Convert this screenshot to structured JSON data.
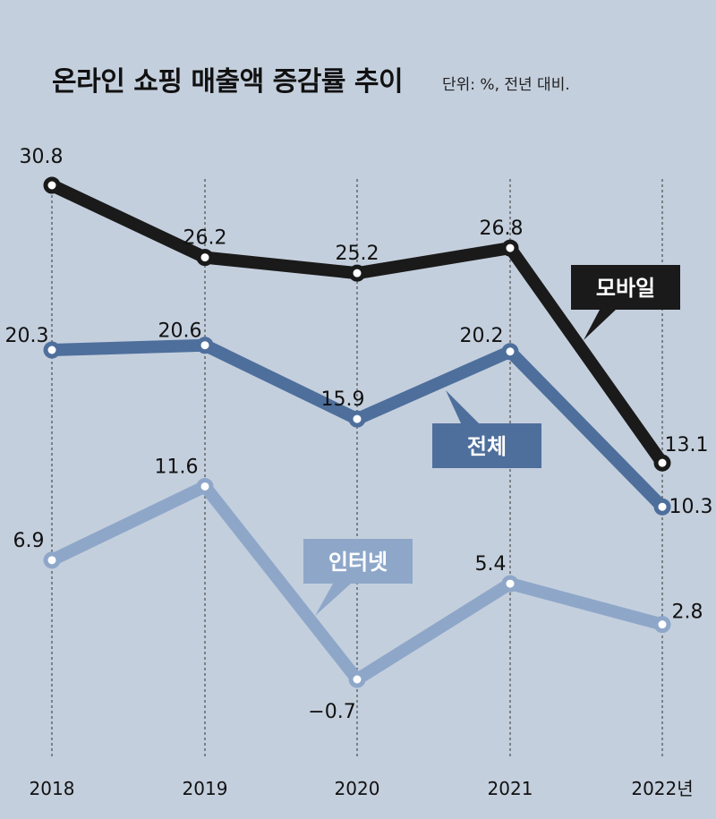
{
  "chart_data": {
    "type": "line",
    "title": "온라인 쇼핑 매출액 증감률 추이",
    "unit_note": "단위: %, 전년 대비.",
    "categories": [
      "2018",
      "2019",
      "2020",
      "2021",
      "2022년"
    ],
    "ylim": [
      -1,
      31
    ],
    "grid": "vertical dashed lines at each year",
    "series": [
      {
        "name": "모바일",
        "values": [
          30.8,
          26.2,
          25.2,
          26.8,
          13.1
        ],
        "value_labels": [
          "30.8",
          "26.2",
          "25.2",
          "26.8",
          "13.1"
        ],
        "color": "#1a1a1a"
      },
      {
        "name": "전체",
        "values": [
          20.3,
          20.6,
          15.9,
          20.2,
          10.3
        ],
        "value_labels": [
          "20.3",
          "20.6",
          "15.9",
          "20.2",
          "10.3"
        ],
        "color": "#4e6f9c"
      },
      {
        "name": "인터넷",
        "values": [
          6.9,
          11.6,
          -0.7,
          5.4,
          2.8
        ],
        "value_labels": [
          "6.9",
          "11.6",
          "−0.7",
          "5.4",
          "2.8"
        ],
        "color": "#8ea7c9"
      }
    ]
  }
}
